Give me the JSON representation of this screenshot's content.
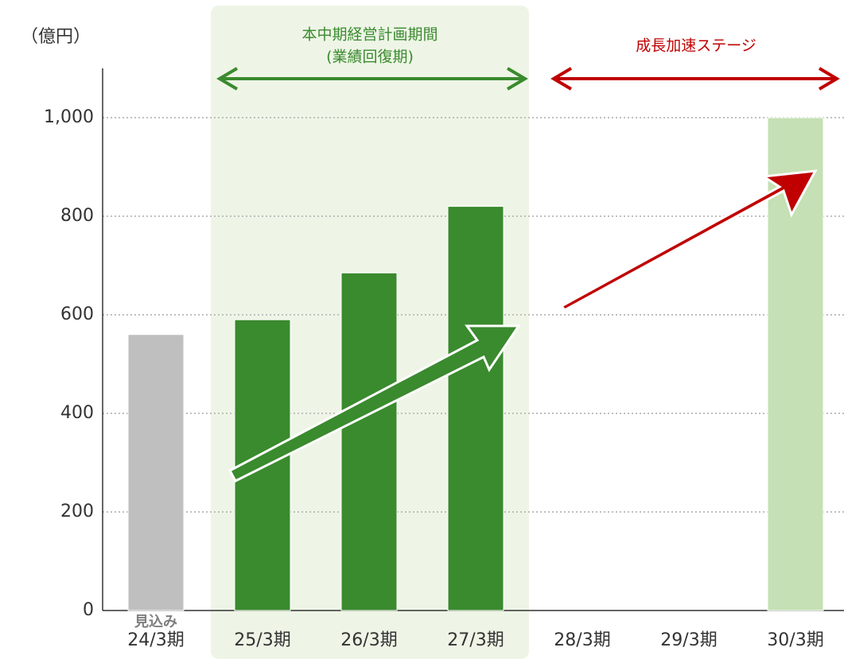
{
  "chart_data": {
    "type": "bar",
    "unit_label": "（億円）",
    "categories": [
      "24/3期",
      "25/3期",
      "26/3期",
      "27/3期",
      "28/3期",
      "29/3期",
      "30/3期"
    ],
    "values": [
      560,
      590,
      685,
      820,
      null,
      null,
      1000
    ],
    "colors": [
      "#bfbfbf",
      "#3a8a2e",
      "#3a8a2e",
      "#3a8a2e",
      null,
      null,
      "#c5e0b4"
    ],
    "ylim": [
      0,
      1100
    ],
    "yticks": [
      0,
      200,
      400,
      600,
      800,
      {
        "value": 1000,
        "label": "1,000"
      }
    ],
    "grid": true,
    "annotations": {
      "plan_period": "本中期経営計画期間",
      "plan_sub": "(業績回復期)",
      "growth_stage": "成長加速ステージ",
      "forecast": "見込み"
    }
  }
}
